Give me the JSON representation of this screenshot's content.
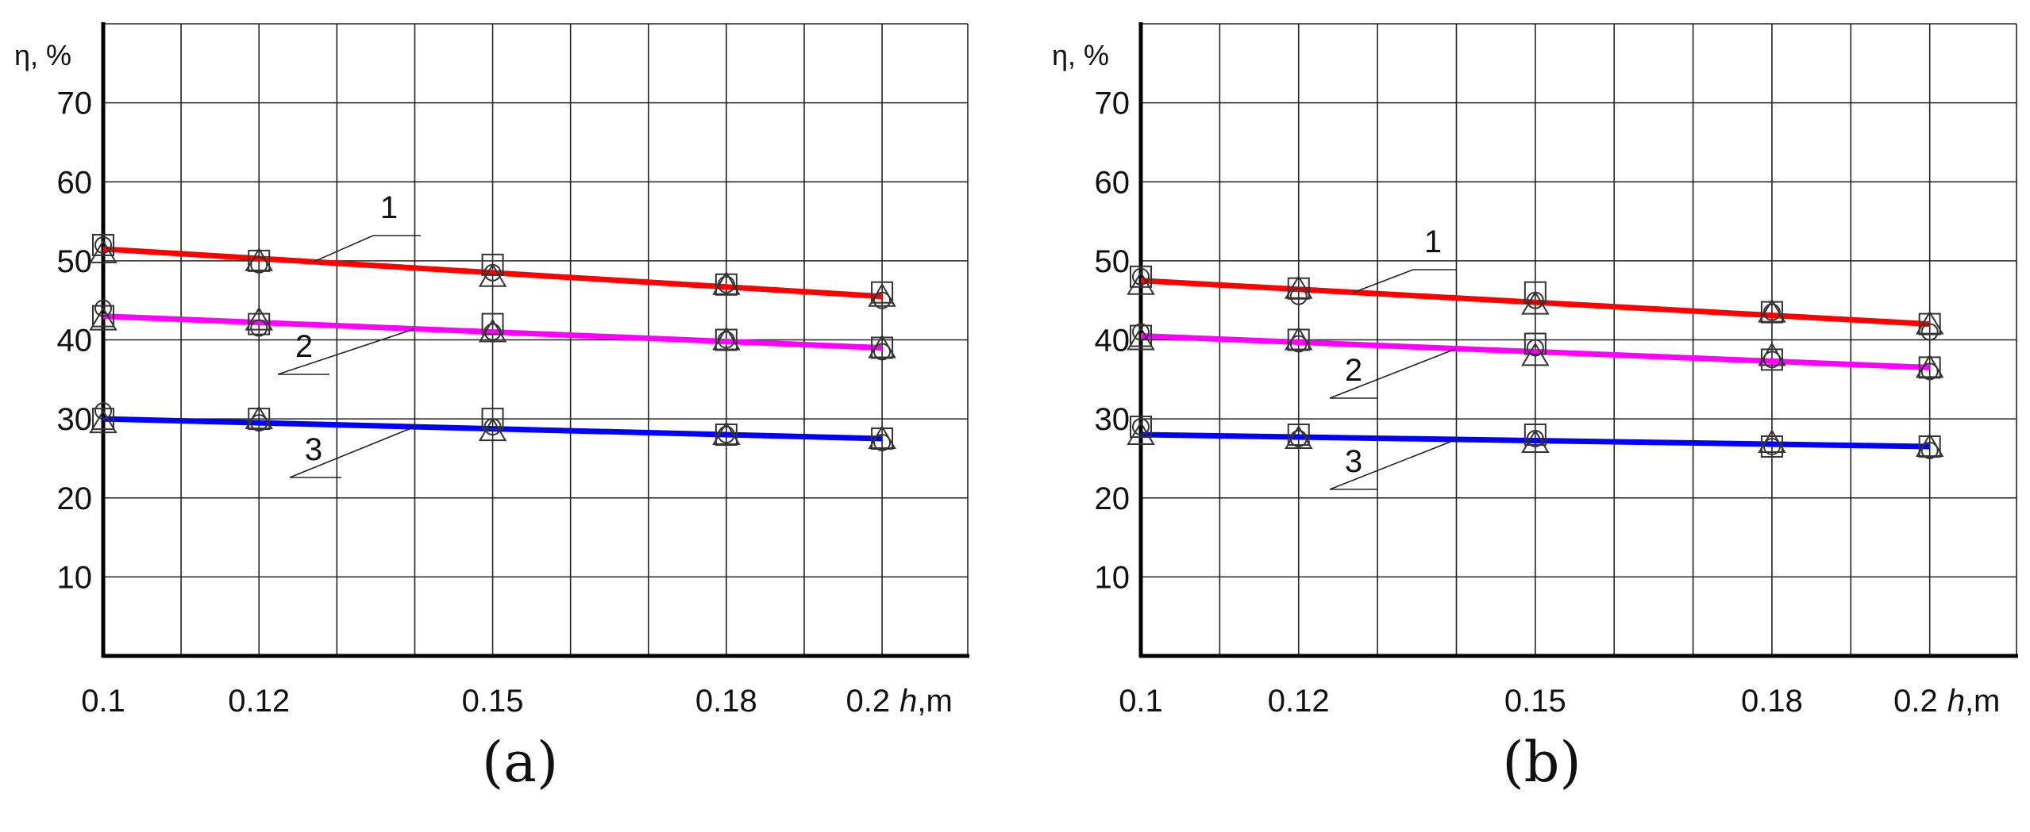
{
  "chart_data": [
    {
      "type": "line",
      "panel_label": "(a)",
      "ylabel": "η, %",
      "xlabel_var": "h",
      "xlabel_unit": ",m",
      "x_tick_labels": [
        "0.1",
        "0.12",
        "0.15",
        "0.18",
        "0.2"
      ],
      "x_tick_values": [
        0.1,
        0.12,
        0.15,
        0.18,
        0.2
      ],
      "y_tick_labels": [
        "10",
        "20",
        "30",
        "40",
        "50",
        "60",
        "70"
      ],
      "y_tick_values": [
        10,
        20,
        30,
        40,
        50,
        60,
        70
      ],
      "xlim": [
        0.1,
        0.211
      ],
      "ylim": [
        0,
        80
      ],
      "grid": true,
      "series": [
        {
          "name": "1",
          "color": "#ff0000",
          "line_x": [
            0.1,
            0.2
          ],
          "line_y": [
            51.5,
            45.5
          ],
          "points": {
            "square": [
              52,
              50,
              49.5,
              47,
              46
            ],
            "triangle": [
              51,
              50,
              48,
              47,
              45.5
            ],
            "circle": [
              52,
              49.5,
              48.5,
              47,
              45
            ]
          }
        },
        {
          "name": "2",
          "color": "#ff00ff",
          "line_x": [
            0.1,
            0.2
          ],
          "line_y": [
            43,
            39
          ],
          "points": {
            "square": [
              43,
              42,
              42,
              40,
              39
            ],
            "triangle": [
              42.5,
              42.5,
              41,
              40,
              39
            ],
            "circle": [
              44,
              41.5,
              41,
              40,
              38.5
            ]
          }
        },
        {
          "name": "3",
          "color": "#0000ff",
          "line_x": [
            0.1,
            0.2
          ],
          "line_y": [
            30,
            27.5
          ],
          "points": {
            "square": [
              30,
              30,
              30,
              28,
              27.5
            ],
            "triangle": [
              29.5,
              30,
              28.5,
              28,
              27.5
            ],
            "circle": [
              31,
              29.5,
              29,
              28,
              27
            ]
          }
        }
      ]
    },
    {
      "type": "line",
      "panel_label": "(b)",
      "ylabel": "η, %",
      "xlabel_var": "h",
      "xlabel_unit": ",m",
      "x_tick_labels": [
        "0.1",
        "0.12",
        "0.15",
        "0.18",
        "0.2"
      ],
      "x_tick_values": [
        0.1,
        0.12,
        0.15,
        0.18,
        0.2
      ],
      "y_tick_labels": [
        "10",
        "20",
        "30",
        "40",
        "50",
        "60",
        "70"
      ],
      "y_tick_values": [
        10,
        20,
        30,
        40,
        50,
        60,
        70
      ],
      "xlim": [
        0.1,
        0.211
      ],
      "ylim": [
        0,
        80
      ],
      "grid": true,
      "series": [
        {
          "name": "1",
          "color": "#ff0000",
          "line_x": [
            0.1,
            0.2
          ],
          "line_y": [
            47.5,
            42
          ],
          "points": {
            "square": [
              48,
              46.5,
              46,
              43.5,
              42
            ],
            "triangle": [
              47,
              46.5,
              44.5,
              43.5,
              42
            ],
            "circle": [
              48,
              45.5,
              45,
              43.5,
              41
            ]
          }
        },
        {
          "name": "2",
          "color": "#ff00ff",
          "line_x": [
            0.1,
            0.2
          ],
          "line_y": [
            40.5,
            36.5
          ],
          "points": {
            "square": [
              40.5,
              40,
              39.5,
              37.5,
              36.5
            ],
            "triangle": [
              40,
              40,
              38,
              38,
              36.5
            ],
            "circle": [
              41,
              39.5,
              39,
              37.5,
              36
            ]
          }
        },
        {
          "name": "3",
          "color": "#0000ff",
          "line_x": [
            0.1,
            0.2
          ],
          "line_y": [
            28,
            26.5
          ],
          "points": {
            "square": [
              29,
              28,
              28,
              26.5,
              26.5
            ],
            "triangle": [
              28,
              27.5,
              27,
              27,
              26.5
            ],
            "circle": [
              29,
              27.5,
              27.5,
              26.5,
              26
            ]
          }
        }
      ]
    }
  ]
}
